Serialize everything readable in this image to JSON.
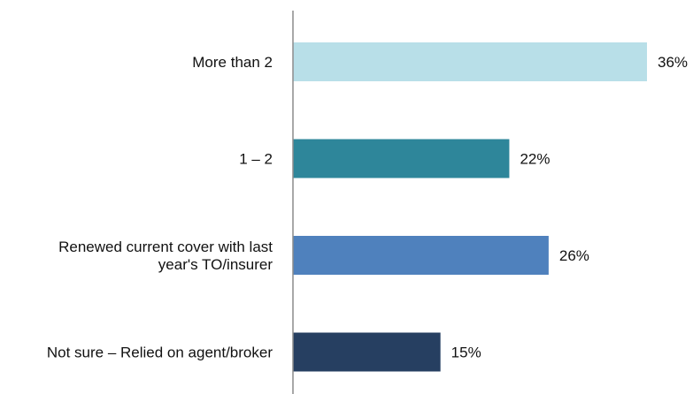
{
  "chart_data": {
    "type": "bar",
    "orientation": "horizontal",
    "categories": [
      [
        "More than 2"
      ],
      [
        "1 – 2"
      ],
      [
        "Renewed current cover with last",
        "year's TO/insurer"
      ],
      [
        "Not sure – Relied on agent/broker"
      ]
    ],
    "values": [
      36,
      22,
      26,
      15
    ],
    "value_labels": [
      "36%",
      "22%",
      "26%",
      "15%"
    ],
    "colors": [
      "#b8dfe8",
      "#2e869a",
      "#4f81bd",
      "#263f61"
    ],
    "xlim": [
      0,
      36
    ],
    "title": "",
    "xlabel": "",
    "ylabel": "",
    "grid": false,
    "legend": "none"
  }
}
